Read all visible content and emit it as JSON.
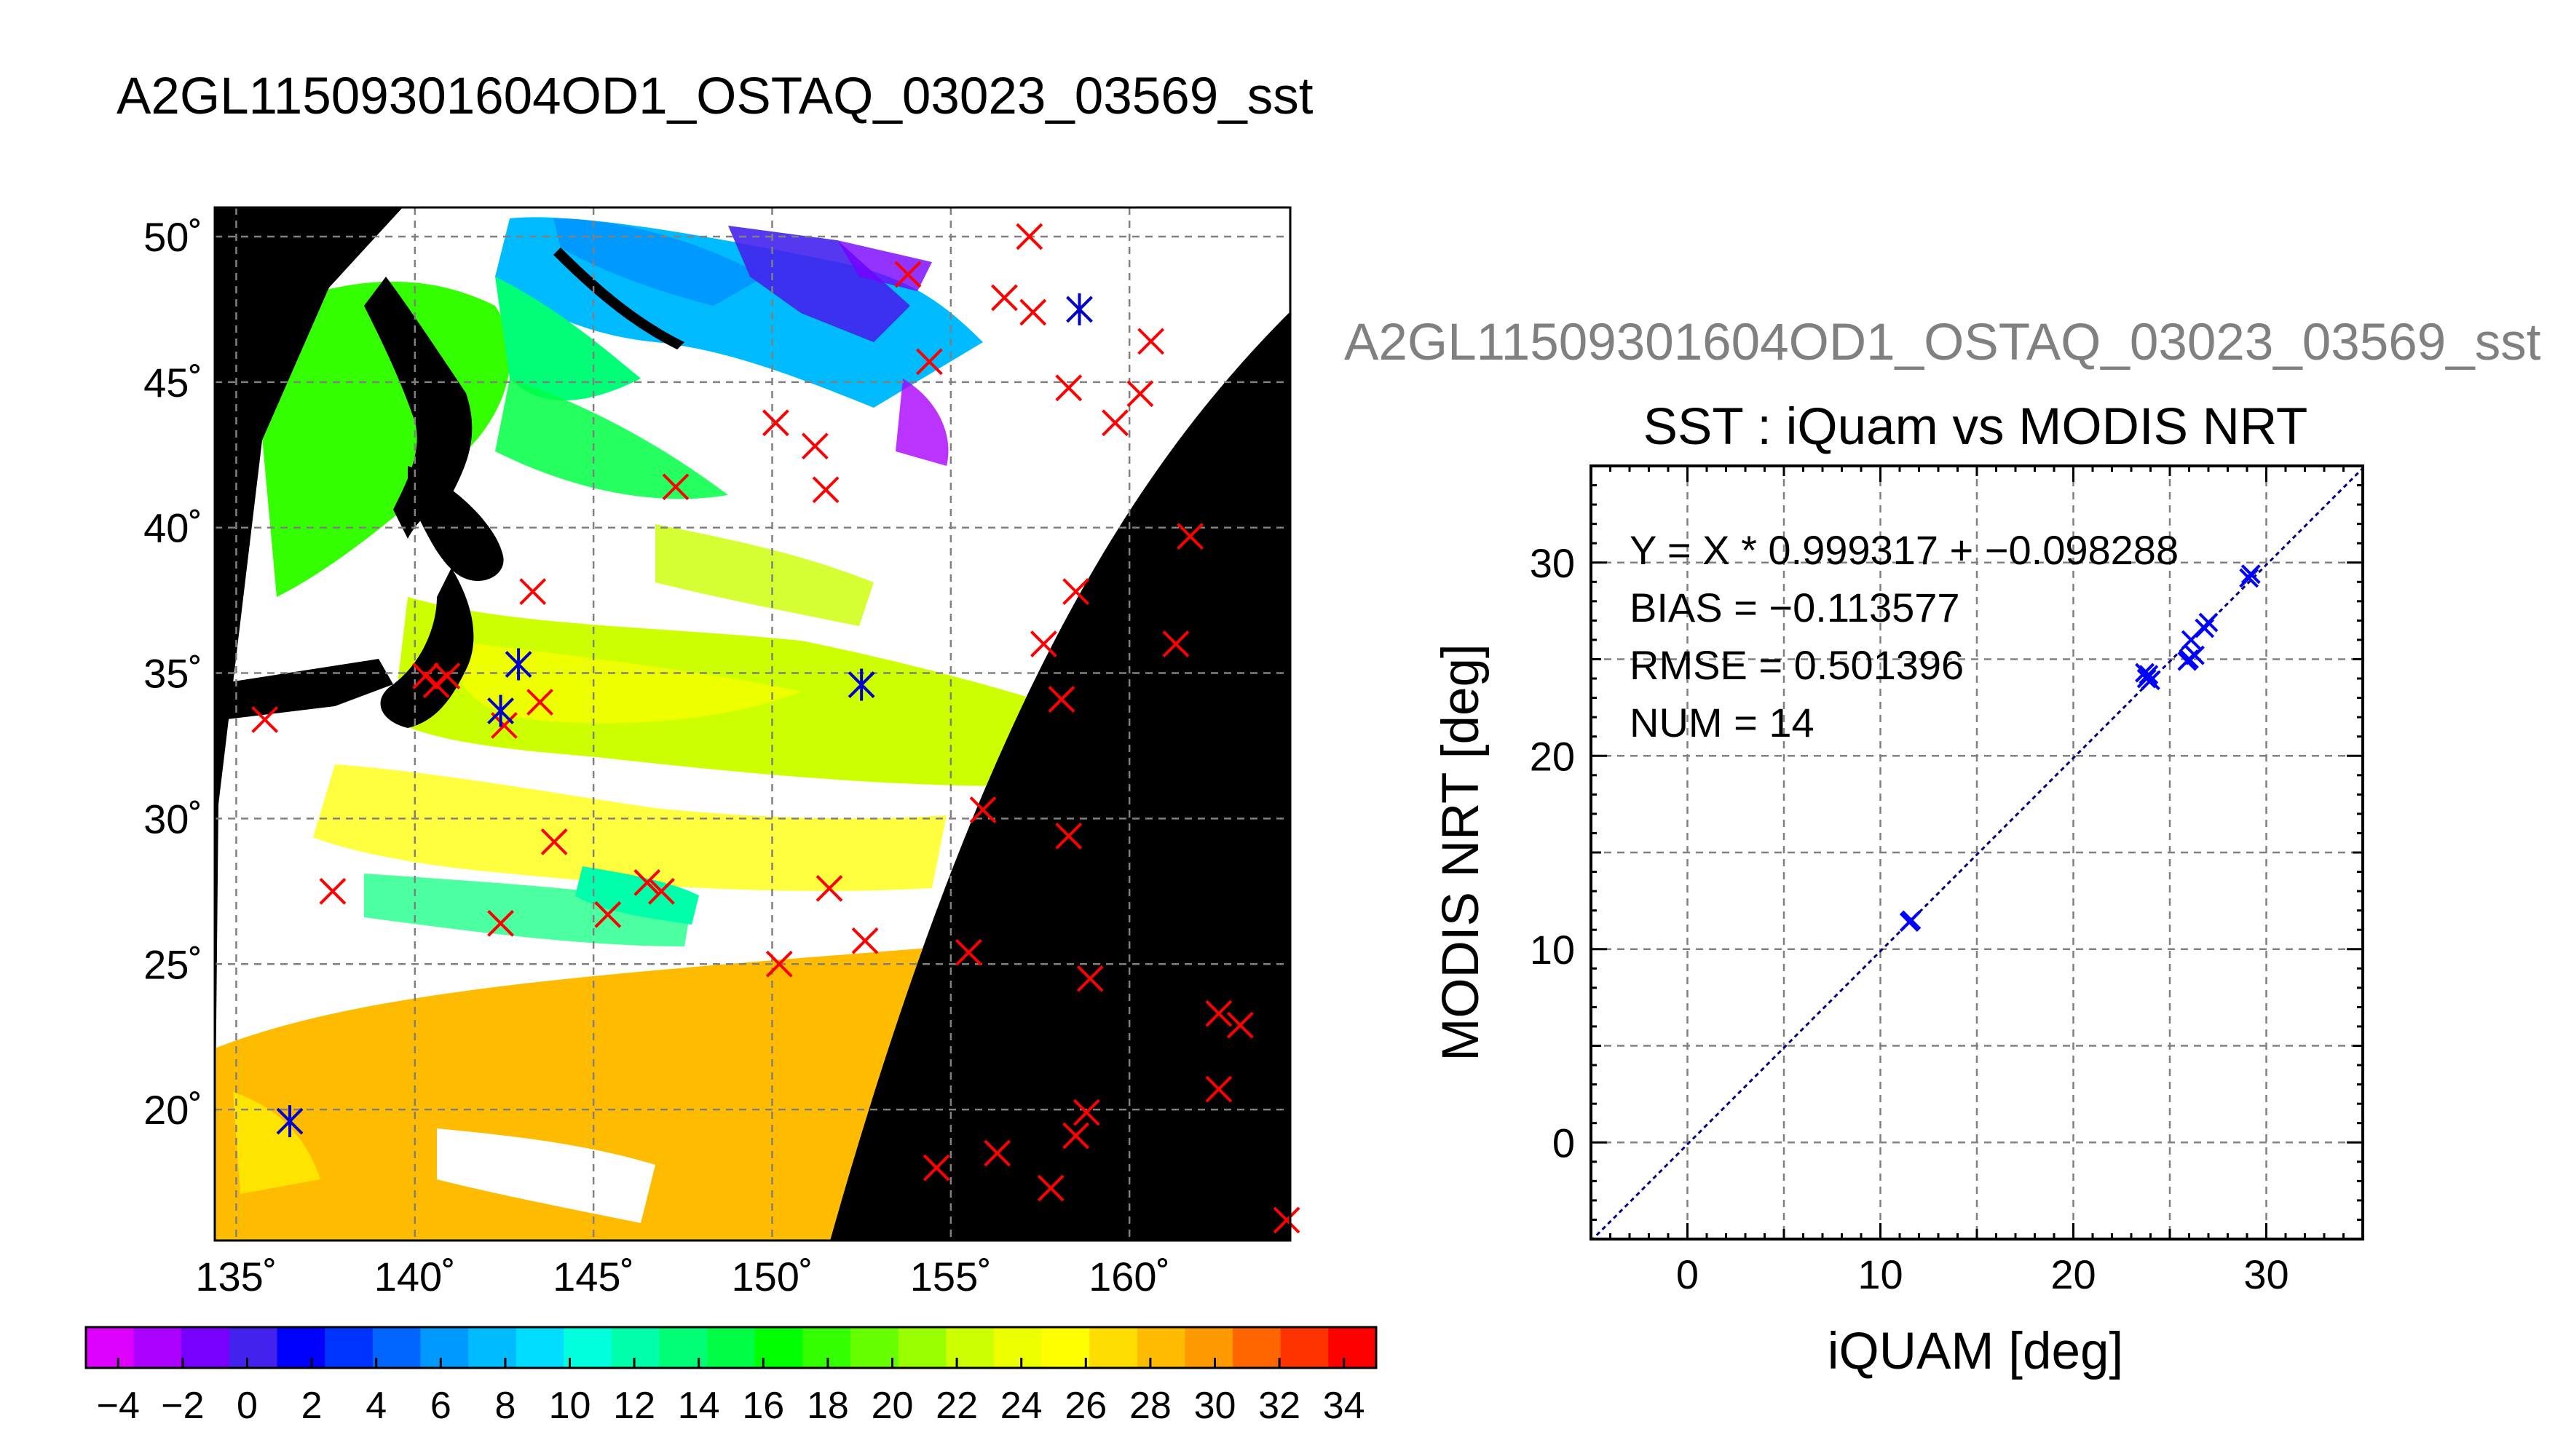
{
  "page_title": "A2GL11509301604OD1_OSTAQ_03023_03569_sst",
  "chart_data": [
    {
      "type": "map",
      "x_ticks": [
        "135˚",
        "140˚",
        "145˚",
        "150˚",
        "155˚",
        "160˚"
      ],
      "y_ticks": [
        "20˚",
        "25˚",
        "30˚",
        "35˚",
        "40˚",
        "45˚",
        "50˚"
      ],
      "lon_range": [
        134.4,
        164.5
      ],
      "lat_range": [
        15.5,
        51.0
      ],
      "grid": true,
      "colorbar": {
        "ticks": [
          "−4",
          "−2",
          "0",
          "2",
          "4",
          "6",
          "8",
          "10",
          "12",
          "14",
          "16",
          "18",
          "20",
          "22",
          "24",
          "26",
          "28",
          "30",
          "32",
          "34"
        ],
        "range": [
          -5,
          35
        ],
        "colors": [
          "#dd00ff",
          "#aa00ff",
          "#7700ff",
          "#4422ee",
          "#0000ff",
          "#0033ff",
          "#0066ff",
          "#0099ff",
          "#00bbff",
          "#00ddff",
          "#00ffdd",
          "#00ffaa",
          "#00ff77",
          "#00ff44",
          "#00ff00",
          "#33ff00",
          "#66ff00",
          "#99ff00",
          "#ccff00",
          "#eeff00",
          "#ffff00",
          "#ffdd00",
          "#ffbb00",
          "#ff9900",
          "#ff6600",
          "#ff3300",
          "#ff0000"
        ]
      },
      "red_markers": [
        [
          135.8,
          33.4
        ],
        [
          137.7,
          27.5
        ],
        [
          140.3,
          34.9
        ],
        [
          140.6,
          34.6
        ],
        [
          140.9,
          34.9
        ],
        [
          142.4,
          26.4
        ],
        [
          142.5,
          33.2
        ],
        [
          143.3,
          37.8
        ],
        [
          143.5,
          34.0
        ],
        [
          143.9,
          29.2
        ],
        [
          145.4,
          26.7
        ],
        [
          146.5,
          27.8
        ],
        [
          146.9,
          27.5
        ],
        [
          147.3,
          41.4
        ],
        [
          150.1,
          43.6
        ],
        [
          150.2,
          25.0
        ],
        [
          151.2,
          42.8
        ],
        [
          151.5,
          41.3
        ],
        [
          151.6,
          27.6
        ],
        [
          152.6,
          25.8
        ],
        [
          153.8,
          48.7
        ],
        [
          154.4,
          45.7
        ],
        [
          154.6,
          18.0
        ],
        [
          155.5,
          25.4
        ],
        [
          155.9,
          30.3
        ],
        [
          156.3,
          18.5
        ],
        [
          156.5,
          47.9
        ],
        [
          157.2,
          50.0
        ],
        [
          157.3,
          47.4
        ],
        [
          157.6,
          36.0
        ],
        [
          157.8,
          17.3
        ],
        [
          158.1,
          34.1
        ],
        [
          158.3,
          29.4
        ],
        [
          158.3,
          44.8
        ],
        [
          158.5,
          37.8
        ],
        [
          158.5,
          19.1
        ],
        [
          158.8,
          19.9
        ],
        [
          158.9,
          24.5
        ],
        [
          159.6,
          43.6
        ],
        [
          160.3,
          44.6
        ],
        [
          160.6,
          46.4
        ],
        [
          161.3,
          36.0
        ],
        [
          161.7,
          39.7
        ],
        [
          162.5,
          23.3
        ],
        [
          162.5,
          20.7
        ],
        [
          163.1,
          22.9
        ],
        [
          164.4,
          16.2
        ]
      ],
      "blue_markers": [
        [
          136.5,
          19.6
        ],
        [
          142.4,
          33.7
        ],
        [
          142.9,
          35.3
        ],
        [
          152.5,
          34.6
        ],
        [
          158.6,
          47.5
        ]
      ]
    },
    {
      "type": "scatter",
      "title": "SST : iQuam vs MODIS NRT",
      "xlabel": "iQUAM [deg]",
      "ylabel": "MODIS NRT [deg]",
      "xlim": [
        -5,
        35
      ],
      "ylim": [
        -5,
        35
      ],
      "x_ticks": [
        "0",
        "10",
        "20",
        "30"
      ],
      "y_ticks": [
        "0",
        "10",
        "20",
        "30"
      ],
      "grid": true,
      "annotations": [
        "Y = X * 0.999317 + −0.098288",
        "BIAS = −0.113577",
        "RMSE = 0.501396",
        "NUM = 14"
      ],
      "fit": {
        "slope": 0.999317,
        "intercept": -0.098288
      },
      "points": [
        [
          11.5,
          11.4
        ],
        [
          11.6,
          11.5
        ],
        [
          23.7,
          24.3
        ],
        [
          23.8,
          24.0
        ],
        [
          23.9,
          24.2
        ],
        [
          24.0,
          23.9
        ],
        [
          26.0,
          25.0
        ],
        [
          26.1,
          26.0
        ],
        [
          26.3,
          25.2
        ],
        [
          26.8,
          26.6
        ],
        [
          27.0,
          26.9
        ],
        [
          29.1,
          29.2
        ],
        [
          29.2,
          29.4
        ],
        [
          25.9,
          24.9
        ]
      ]
    }
  ]
}
